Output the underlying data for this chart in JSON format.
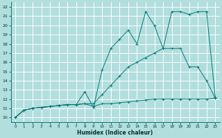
{
  "xlabel": "Humidex (Indice chaleur)",
  "xlim": [
    -0.5,
    23.5
  ],
  "ylim": [
    9.5,
    22.5
  ],
  "xticks": [
    0,
    1,
    2,
    3,
    4,
    5,
    6,
    7,
    8,
    9,
    10,
    11,
    12,
    13,
    14,
    15,
    16,
    17,
    18,
    19,
    20,
    21,
    22,
    23
  ],
  "yticks": [
    10,
    11,
    12,
    13,
    14,
    15,
    16,
    17,
    18,
    19,
    20,
    21,
    22
  ],
  "bg_color": "#b2dede",
  "grid_color": "#ffffff",
  "line_color": "#007878",
  "line1_x": [
    0,
    1,
    2,
    3,
    4,
    5,
    6,
    7,
    8,
    9,
    10,
    11,
    12,
    13,
    14,
    15,
    16,
    17,
    18,
    19,
    20,
    21,
    22,
    23
  ],
  "line1_y": [
    10.0,
    10.8,
    11.0,
    11.1,
    11.2,
    11.3,
    11.4,
    11.4,
    11.5,
    11.2,
    11.5,
    11.5,
    11.6,
    11.7,
    11.8,
    11.9,
    12.0,
    12.0,
    12.0,
    12.0,
    12.0,
    12.0,
    12.0,
    12.1
  ],
  "line2_x": [
    0,
    1,
    2,
    3,
    4,
    5,
    6,
    7,
    8,
    9,
    10,
    11,
    12,
    13,
    14,
    15,
    16,
    17,
    18,
    19,
    20,
    21,
    22,
    23
  ],
  "line2_y": [
    10.0,
    10.8,
    11.0,
    11.1,
    11.2,
    11.3,
    11.4,
    11.4,
    11.5,
    11.5,
    12.5,
    13.5,
    14.5,
    15.5,
    16.0,
    16.5,
    17.0,
    17.5,
    17.5,
    17.5,
    15.5,
    15.5,
    14.0,
    12.1
  ],
  "line3_x": [
    0,
    1,
    2,
    3,
    4,
    5,
    6,
    7,
    8,
    9,
    10,
    11,
    12,
    13,
    14,
    15,
    16,
    17,
    18,
    19,
    20,
    21,
    22,
    23
  ],
  "line3_y": [
    10.0,
    10.8,
    11.0,
    11.1,
    11.2,
    11.3,
    11.4,
    11.4,
    12.8,
    11.1,
    15.2,
    17.5,
    18.5,
    19.5,
    18.0,
    21.5,
    20.0,
    17.5,
    21.5,
    21.5,
    21.2,
    21.5,
    21.5,
    12.2
  ]
}
